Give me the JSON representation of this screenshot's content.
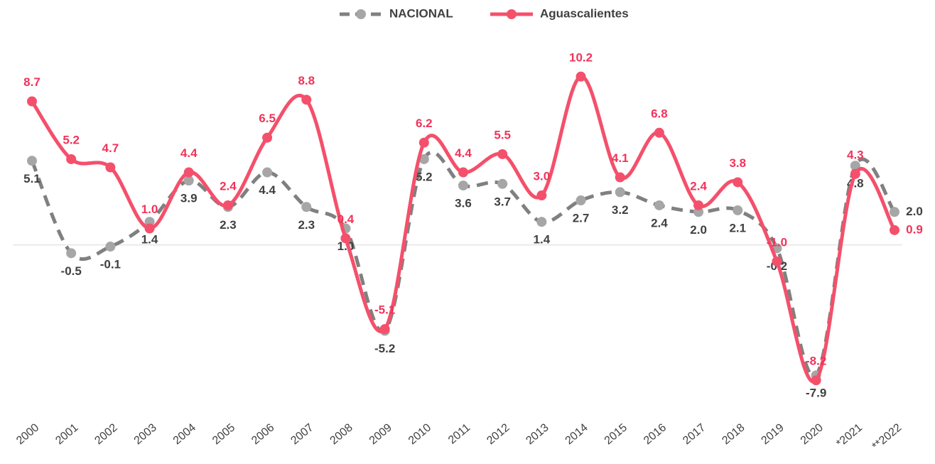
{
  "chart_data": {
    "type": "line",
    "categories": [
      "2000",
      "2001",
      "2002",
      "2003",
      "2004",
      "2005",
      "2006",
      "2007",
      "2008",
      "2009",
      "2010",
      "2011",
      "2012",
      "2013",
      "2014",
      "2015",
      "2016",
      "2017",
      "2018",
      "2019",
      "2020",
      "*2021",
      "**2022"
    ],
    "series": [
      {
        "name": "NACIONAL",
        "color": "#808080",
        "marker_color": "#a6a6a6",
        "dashed": true,
        "label_color": "#404040",
        "values": [
          5.1,
          -0.5,
          -0.1,
          1.4,
          3.9,
          2.3,
          4.4,
          2.3,
          1.0,
          -5.2,
          5.2,
          3.6,
          3.7,
          1.4,
          2.7,
          3.2,
          2.4,
          2.0,
          2.1,
          -0.2,
          -7.9,
          4.8,
          2.0
        ],
        "value_labels": [
          "5.1",
          "-0.5",
          "-0.1",
          "1.4",
          "3.9",
          "2.3",
          "4.4",
          "2.3",
          "1.0",
          "-5.2",
          "5.2",
          "3.6",
          "3.7",
          "1.4",
          "2.7",
          "3.2",
          "2.4",
          "2.0",
          "2.1",
          "-0.2",
          "-7.9",
          "4.8",
          "2.0"
        ]
      },
      {
        "name": "Aguascalientes",
        "color": "#f4506b",
        "marker_color": "#f4506b",
        "dashed": false,
        "label_color": "#f0345a",
        "values": [
          8.7,
          5.2,
          4.7,
          1.0,
          4.4,
          2.4,
          6.5,
          8.8,
          0.4,
          -5.1,
          6.2,
          4.4,
          5.5,
          3.0,
          10.2,
          4.1,
          6.8,
          2.4,
          3.8,
          -1.0,
          -8.2,
          4.3,
          0.9
        ],
        "value_labels": [
          "8.7",
          "5.2",
          "4.7",
          "1.0",
          "4.4",
          "2.4",
          "6.5",
          "8.8",
          "0.4",
          "-5.1",
          "6.2",
          "4.4",
          "5.5",
          "3.0",
          "10.2",
          "4.1",
          "6.8",
          "2.4",
          "3.8",
          "-1.0",
          "-8.2",
          "4.3",
          "0.9"
        ]
      }
    ],
    "ylim": [
      -10,
      12
    ],
    "legend": "top"
  }
}
